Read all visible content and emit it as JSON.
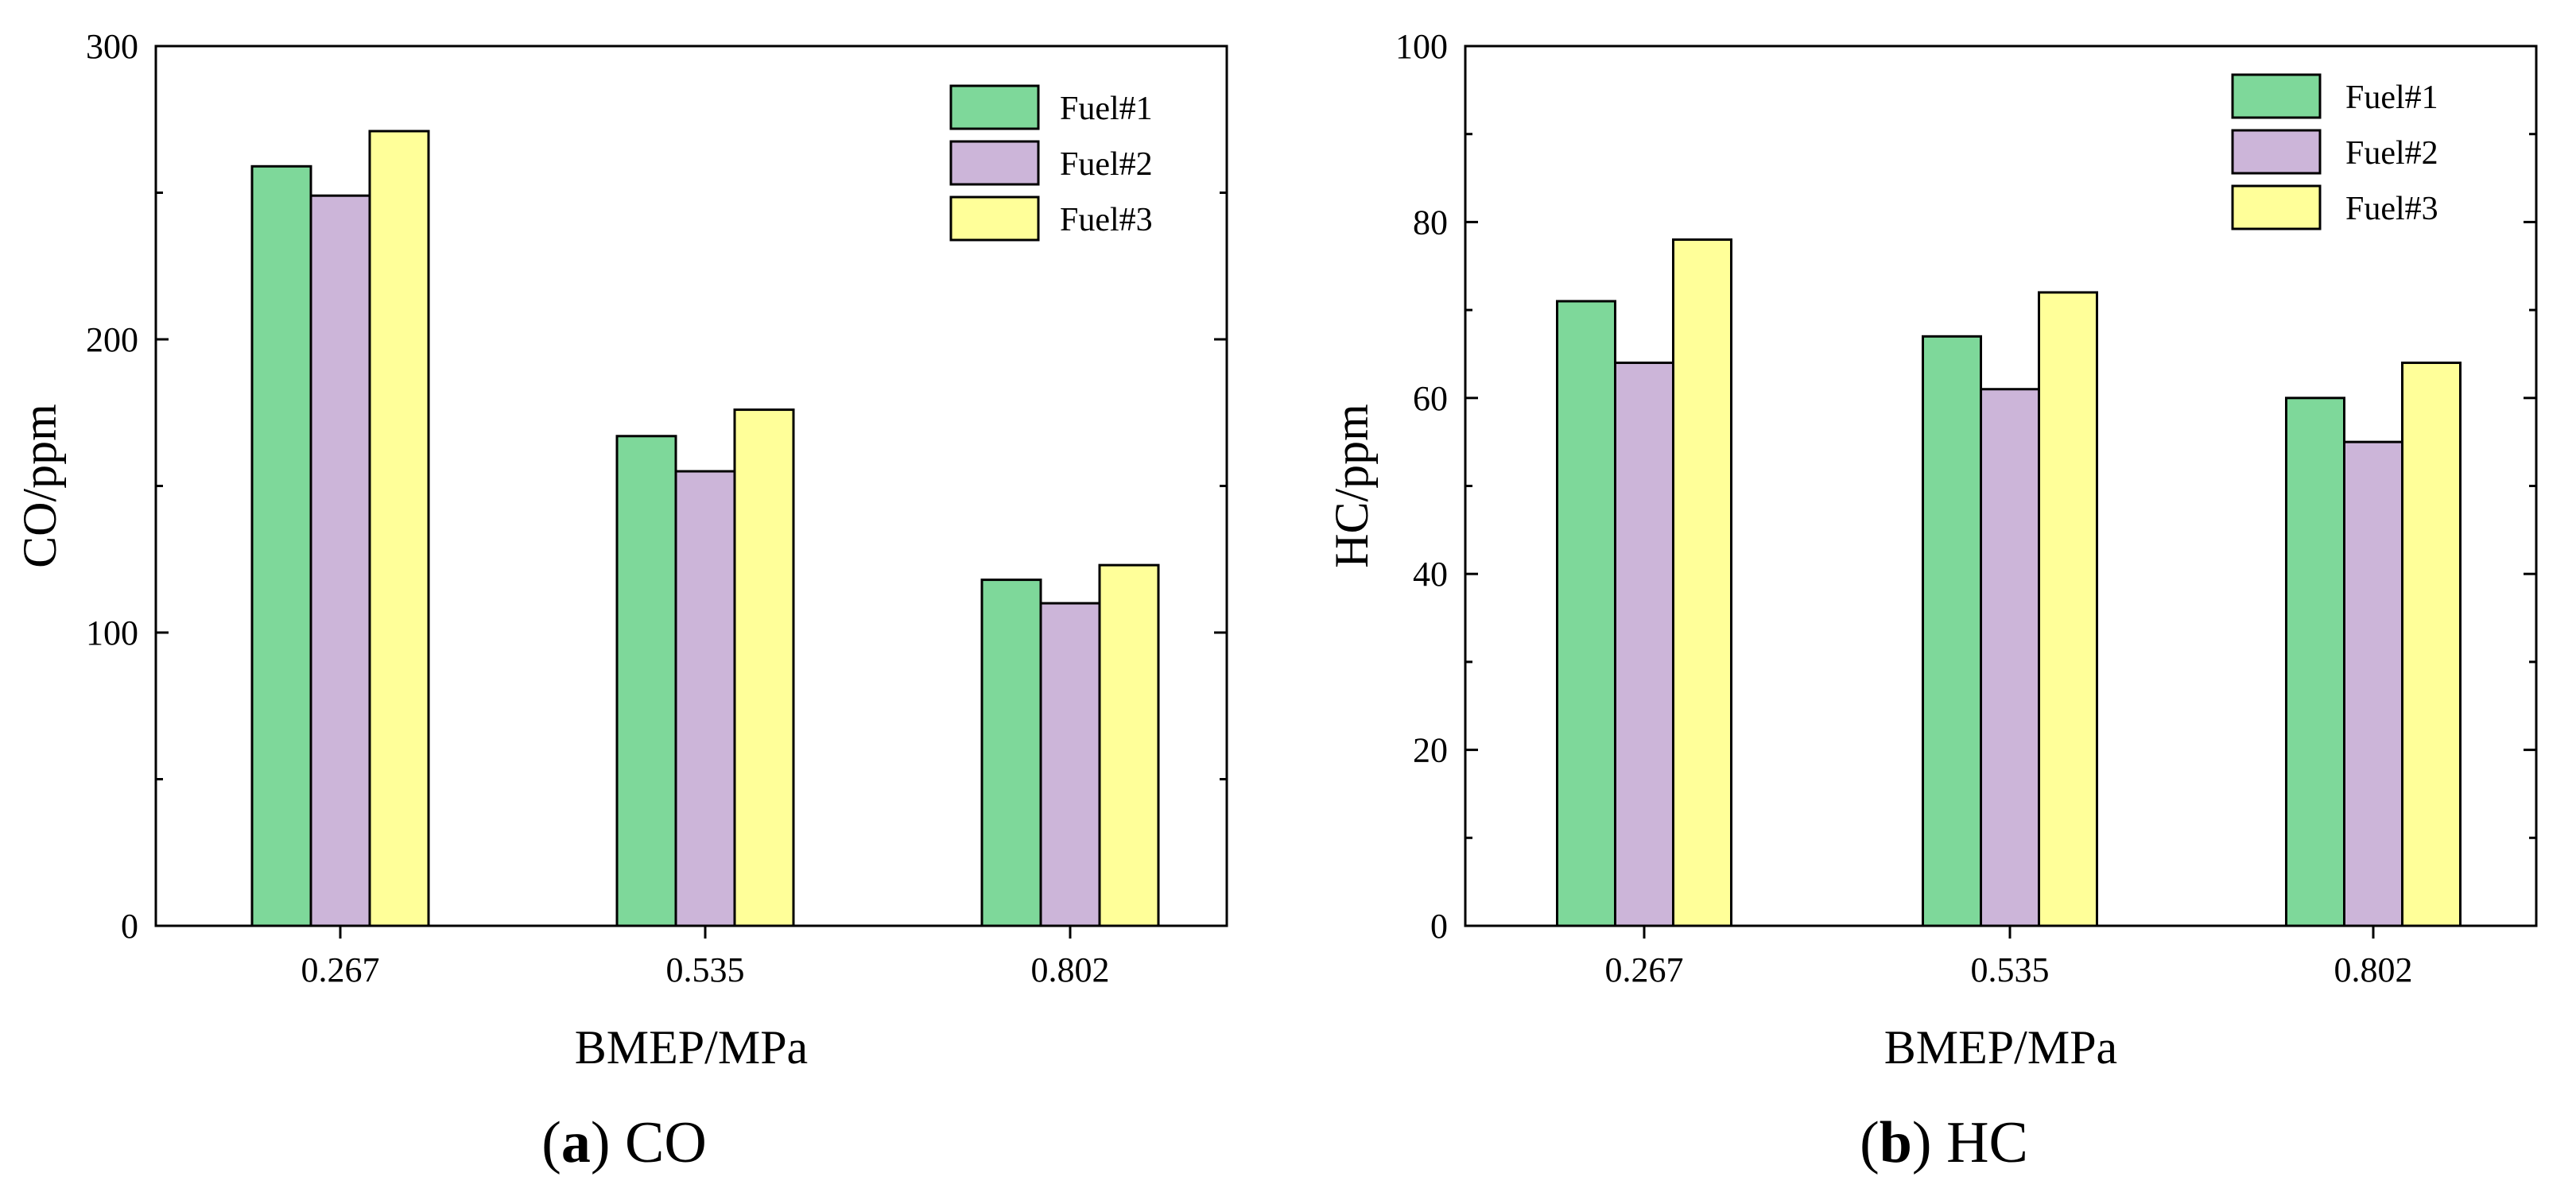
{
  "chart_data": [
    {
      "type": "bar",
      "panel": "a",
      "caption_letter": "a",
      "caption_text": "CO",
      "xlabel": "BMEP/MPa",
      "ylabel": "CO/ppm",
      "ylim": [
        0,
        300
      ],
      "yticks": [
        0,
        100,
        200,
        300
      ],
      "categories": [
        "0.267",
        "0.535",
        "0.802"
      ],
      "legend_position": "top-right",
      "series": [
        {
          "name": "Fuel#1",
          "color": "#7ed89a",
          "values": [
            259,
            167,
            118
          ]
        },
        {
          "name": "Fuel#2",
          "color": "#ccb5d9",
          "values": [
            249,
            155,
            110
          ]
        },
        {
          "name": "Fuel#3",
          "color": "#ffff99",
          "values": [
            271,
            176,
            123
          ]
        }
      ]
    },
    {
      "type": "bar",
      "panel": "b",
      "caption_letter": "b",
      "caption_text": "HC",
      "xlabel": "BMEP/MPa",
      "ylabel": "HC/ppm",
      "ylim": [
        0,
        100
      ],
      "yticks": [
        0,
        20,
        40,
        60,
        80,
        100
      ],
      "categories": [
        "0.267",
        "0.535",
        "0.802"
      ],
      "legend_position": "top-right",
      "series": [
        {
          "name": "Fuel#1",
          "color": "#7ed89a",
          "values": [
            71,
            67,
            60
          ]
        },
        {
          "name": "Fuel#2",
          "color": "#ccb5d9",
          "values": [
            64,
            61,
            55
          ]
        },
        {
          "name": "Fuel#3",
          "color": "#ffff99",
          "values": [
            78,
            72,
            64
          ]
        }
      ]
    }
  ]
}
